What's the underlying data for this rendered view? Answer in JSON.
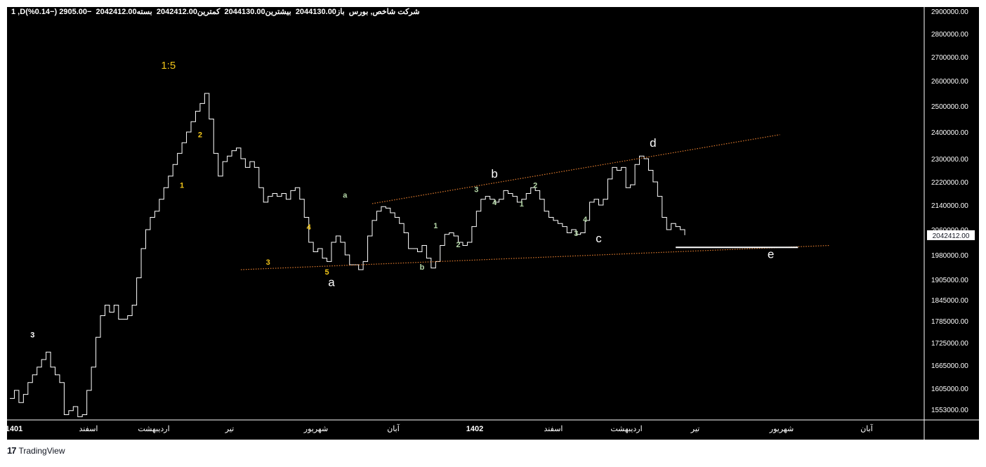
{
  "header": {
    "symbol": "شاخص,شرکت",
    "exchange": "بورس",
    "interval": "D",
    "number_one": "1",
    "text": "1 ,Dشرکت شاخص, بورس  باز2044130.00  بیشترین2044130.00  کمترین2042412.00  بسته2042412.00  −2905.00 (−0.14%)"
  },
  "price_badge": "2042412.00",
  "footer": {
    "brand": "TradingView",
    "logo": "17"
  },
  "chart_data": {
    "type": "line",
    "title": "",
    "xlabel": "",
    "ylabel": "",
    "ylim": [
      1520000,
      2920000
    ],
    "y_ticks": [
      "2900000.00",
      "2800000.00",
      "2700000.00",
      "2600000.00",
      "2500000.00",
      "2400000.00",
      "2300000.00",
      "2220000.00",
      "2140000.00",
      "2060000.00",
      "1980000.00",
      "1905000.00",
      "1845000.00",
      "1785000.00",
      "1725000.00",
      "1665000.00",
      "1605000.00",
      "1553000.00"
    ],
    "x_ticks": [
      "1401",
      "اسفند",
      "اردیبهشت",
      "تیر",
      "شهریور",
      "آبان",
      "1402",
      "اسفند",
      "اردیبهشت",
      "تیر",
      "شهریور",
      "آبان"
    ],
    "series": [
      {
        "values": [
          [
            0,
            1580000
          ],
          [
            1,
            1600000
          ],
          [
            2,
            1570000
          ],
          [
            3,
            1590000
          ],
          [
            4,
            1620000
          ],
          [
            5,
            1640000
          ],
          [
            6,
            1660000
          ],
          [
            7,
            1680000
          ],
          [
            8,
            1700000
          ],
          [
            9,
            1660000
          ],
          [
            10,
            1640000
          ],
          [
            11,
            1620000
          ],
          [
            12,
            1540000
          ],
          [
            13,
            1550000
          ],
          [
            14,
            1560000
          ],
          [
            15,
            1535000
          ],
          [
            16,
            1540000
          ],
          [
            17,
            1600000
          ],
          [
            18,
            1660000
          ],
          [
            19,
            1740000
          ],
          [
            20,
            1800000
          ],
          [
            21,
            1830000
          ],
          [
            22,
            1810000
          ],
          [
            23,
            1830000
          ],
          [
            24,
            1790000
          ],
          [
            25,
            1790000
          ],
          [
            26,
            1800000
          ],
          [
            27,
            1830000
          ],
          [
            28,
            1910000
          ],
          [
            29,
            2000000
          ],
          [
            30,
            2060000
          ],
          [
            31,
            2100000
          ],
          [
            32,
            2120000
          ],
          [
            33,
            2160000
          ],
          [
            34,
            2200000
          ],
          [
            35,
            2240000
          ],
          [
            36,
            2280000
          ],
          [
            37,
            2320000
          ],
          [
            38,
            2360000
          ],
          [
            39,
            2400000
          ],
          [
            40,
            2440000
          ],
          [
            41,
            2480000
          ],
          [
            42,
            2510000
          ],
          [
            43,
            2550000
          ],
          [
            44,
            2450000
          ],
          [
            45,
            2320000
          ],
          [
            46,
            2240000
          ],
          [
            47,
            2290000
          ],
          [
            48,
            2310000
          ],
          [
            49,
            2330000
          ],
          [
            50,
            2340000
          ],
          [
            51,
            2300000
          ],
          [
            52,
            2270000
          ],
          [
            53,
            2290000
          ],
          [
            54,
            2270000
          ],
          [
            55,
            2200000
          ],
          [
            56,
            2150000
          ],
          [
            57,
            2170000
          ],
          [
            58,
            2180000
          ],
          [
            59,
            2170000
          ],
          [
            60,
            2180000
          ],
          [
            61,
            2160000
          ],
          [
            62,
            2190000
          ],
          [
            63,
            2200000
          ],
          [
            64,
            2160000
          ],
          [
            65,
            2100000
          ],
          [
            66,
            2020000
          ],
          [
            67,
            1990000
          ],
          [
            68,
            2000000
          ],
          [
            69,
            1970000
          ],
          [
            70,
            1960000
          ],
          [
            71,
            2020000
          ],
          [
            72,
            2040000
          ],
          [
            73,
            2020000
          ],
          [
            74,
            1980000
          ],
          [
            75,
            1950000
          ],
          [
            76,
            1950000
          ],
          [
            77,
            1935000
          ],
          [
            78,
            1960000
          ],
          [
            79,
            2040000
          ],
          [
            80,
            2090000
          ],
          [
            81,
            2120000
          ],
          [
            82,
            2135000
          ],
          [
            83,
            2130000
          ],
          [
            84,
            2115000
          ],
          [
            85,
            2100000
          ],
          [
            86,
            2080000
          ],
          [
            87,
            2050000
          ],
          [
            88,
            2000000
          ],
          [
            89,
            2000000
          ],
          [
            90,
            1990000
          ],
          [
            91,
            2010000
          ],
          [
            92,
            1970000
          ],
          [
            93,
            1940000
          ],
          [
            94,
            1960000
          ],
          [
            95,
            2010000
          ],
          [
            96,
            2045000
          ],
          [
            97,
            2050000
          ],
          [
            98,
            2040000
          ],
          [
            99,
            2020000
          ],
          [
            100,
            2010000
          ],
          [
            101,
            2020000
          ],
          [
            102,
            2070000
          ],
          [
            103,
            2120000
          ],
          [
            104,
            2160000
          ],
          [
            105,
            2170000
          ],
          [
            106,
            2160000
          ],
          [
            107,
            2150000
          ],
          [
            108,
            2160000
          ],
          [
            109,
            2190000
          ],
          [
            110,
            2180000
          ],
          [
            111,
            2170000
          ],
          [
            112,
            2150000
          ],
          [
            113,
            2160000
          ],
          [
            114,
            2180000
          ],
          [
            115,
            2200000
          ],
          [
            116,
            2190000
          ],
          [
            117,
            2160000
          ],
          [
            118,
            2120000
          ],
          [
            119,
            2100000
          ],
          [
            120,
            2090000
          ],
          [
            121,
            2080000
          ],
          [
            122,
            2070000
          ],
          [
            123,
            2050000
          ],
          [
            124,
            2060000
          ],
          [
            125,
            2045000
          ],
          [
            126,
            2050000
          ],
          [
            127,
            2090000
          ],
          [
            128,
            2150000
          ],
          [
            129,
            2160000
          ],
          [
            130,
            2140000
          ],
          [
            131,
            2160000
          ],
          [
            132,
            2230000
          ],
          [
            133,
            2270000
          ],
          [
            134,
            2260000
          ],
          [
            135,
            2270000
          ],
          [
            136,
            2200000
          ],
          [
            137,
            2210000
          ],
          [
            138,
            2280000
          ],
          [
            139,
            2310000
          ],
          [
            140,
            2300000
          ],
          [
            141,
            2260000
          ],
          [
            142,
            2220000
          ],
          [
            143,
            2170000
          ],
          [
            144,
            2100000
          ],
          [
            145,
            2060000
          ],
          [
            146,
            2080000
          ],
          [
            147,
            2070000
          ],
          [
            148,
            2060000
          ],
          [
            149,
            2042412
          ]
        ]
      }
    ],
    "trendlines": [
      {
        "from": [
          80,
          2145000
        ],
        "to": [
          170,
          2390000
        ],
        "style": "dotted",
        "color": "#e07b2e"
      },
      {
        "from": [
          51,
          1935000
        ],
        "to": [
          181,
          2010000
        ],
        "style": "dotted",
        "color": "#e07b2e"
      },
      {
        "from": [
          147,
          2004000
        ],
        "to": [
          174,
          2004000
        ],
        "style": "solid",
        "color": "#ffffff"
      }
    ],
    "annotations": [
      {
        "text": "1:5",
        "at": [
          35,
          2650000
        ],
        "color": "#f0c419"
      },
      {
        "text": "3",
        "at": [
          5,
          1740000
        ],
        "color": "#ffffff"
      },
      {
        "text": "2",
        "at": [
          42,
          2380000
        ],
        "color": "#f0c419"
      },
      {
        "text": "1",
        "at": [
          38,
          2200000
        ],
        "color": "#f0c419"
      },
      {
        "text": "3",
        "at": [
          57,
          1950000
        ],
        "color": "#f0c419"
      },
      {
        "text": "4",
        "at": [
          66,
          2060000
        ],
        "color": "#f0c419"
      },
      {
        "text": "5",
        "at": [
          70,
          1920000
        ],
        "color": "#f0c419"
      },
      {
        "text": "a",
        "at": [
          71,
          1885000
        ],
        "color": "#ffffff"
      },
      {
        "text": "a",
        "at": [
          74,
          2165000
        ],
        "color": "#b5d7a8"
      },
      {
        "text": "b",
        "at": [
          91,
          1935000
        ],
        "color": "#b5d7a8"
      },
      {
        "text": "1",
        "at": [
          94,
          2065000
        ],
        "color": "#b5d7a8"
      },
      {
        "text": "2",
        "at": [
          99,
          2005000
        ],
        "color": "#b5d7a8"
      },
      {
        "text": "3",
        "at": [
          103,
          2185000
        ],
        "color": "#b5d7a8"
      },
      {
        "text": "4",
        "at": [
          107,
          2140000
        ],
        "color": "#b5d7a8"
      },
      {
        "text": "b",
        "at": [
          107,
          2235000
        ],
        "color": "#ffffff"
      },
      {
        "text": "1",
        "at": [
          113,
          2135000
        ],
        "color": "#b5d7a8"
      },
      {
        "text": "2",
        "at": [
          116,
          2200000
        ],
        "color": "#b5d7a8"
      },
      {
        "text": "4",
        "at": [
          127,
          2085000
        ],
        "color": "#b5d7a8"
      },
      {
        "text": "3",
        "at": [
          125,
          2040000
        ],
        "color": "#b5d7a8"
      },
      {
        "text": "c",
        "at": [
          130,
          2020000
        ],
        "color": "#ffffff"
      },
      {
        "text": "d",
        "at": [
          142,
          2345000
        ],
        "color": "#ffffff"
      },
      {
        "text": "e",
        "at": [
          168,
          1970000
        ],
        "color": "#ffffff"
      }
    ],
    "grid": false,
    "legend": "none"
  },
  "colors": {
    "background": "#000000",
    "line": "#ffffff",
    "axis_text": "#ffffff",
    "badge_bg": "#ffffff",
    "badge_text": "#131722",
    "frame": "#ffffff"
  }
}
